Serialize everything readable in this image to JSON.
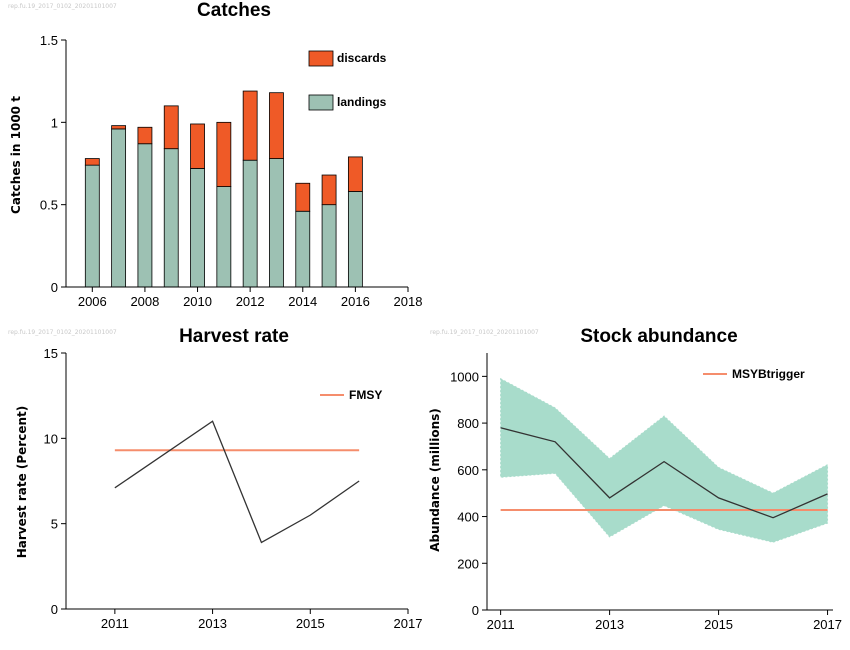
{
  "watermark": "rep.fu.19_2017_0102_20201101007",
  "colors": {
    "landings": "#9dc1b3",
    "discards": "#ef5a27",
    "reference": "#f58d6c",
    "band": "#a8dccb",
    "line": "#333333"
  },
  "chart_data": [
    {
      "type": "bar",
      "title": "Catches",
      "ylabel": "Catches in 1000 t",
      "xlabel": "",
      "xlim": [
        2005,
        2018
      ],
      "ylim": [
        0,
        1.5
      ],
      "xticks": [
        2006,
        2008,
        2010,
        2012,
        2014,
        2016,
        2018
      ],
      "yticks": [
        0,
        0.5,
        1,
        1.5
      ],
      "ytick_labels": [
        "0",
        "0.5",
        "1",
        "1.5"
      ],
      "categories": [
        2006,
        2007,
        2008,
        2009,
        2010,
        2011,
        2012,
        2013,
        2014,
        2015,
        2016
      ],
      "series": [
        {
          "name": "landings",
          "values": [
            0.74,
            0.96,
            0.87,
            0.84,
            0.72,
            0.61,
            0.77,
            0.78,
            0.46,
            0.5,
            0.58
          ]
        },
        {
          "name": "discards",
          "values": [
            0.04,
            0.02,
            0.1,
            0.26,
            0.27,
            0.39,
            0.42,
            0.4,
            0.17,
            0.18,
            0.21
          ]
        }
      ],
      "stacked": true,
      "legend": "top-right"
    },
    {
      "type": "line",
      "title": "Harvest rate",
      "ylabel": "Harvest rate (Percent)",
      "xlabel": "",
      "xlim": [
        2010,
        2017
      ],
      "ylim": [
        0,
        15
      ],
      "xticks": [
        2011,
        2013,
        2015,
        2017
      ],
      "yticks": [
        0,
        5,
        10,
        15
      ],
      "series": [
        {
          "name": "",
          "x": [
            2011,
            2013,
            2014,
            2015,
            2016
          ],
          "values": [
            7.1,
            11.0,
            3.9,
            5.5,
            7.5
          ]
        }
      ],
      "reference_line": {
        "name": "FMSY",
        "y": 9.3,
        "x": [
          2011,
          2016
        ]
      },
      "legend": "top-right"
    },
    {
      "type": "area",
      "title": "Stock abundance",
      "ylabel": "Abundance (millions)",
      "xlabel": "",
      "xlim": [
        2010.75,
        2017.1
      ],
      "ylim": [
        0,
        1100
      ],
      "xticks": [
        2011,
        2013,
        2015,
        2017
      ],
      "yticks": [
        0,
        200,
        400,
        600,
        800,
        1000
      ],
      "x": [
        2011,
        2012,
        2013,
        2014,
        2015,
        2016,
        2017
      ],
      "series": [
        {
          "name": "",
          "values": [
            780,
            720,
            480,
            635,
            480,
            395,
            497
          ]
        }
      ],
      "band_upper": [
        990,
        865,
        648,
        830,
        610,
        500,
        622
      ],
      "band_lower": [
        568,
        585,
        313,
        447,
        345,
        290,
        372
      ],
      "reference_line": {
        "name": "MSYBtrigger",
        "y": 428,
        "x": [
          2011,
          2017
        ]
      },
      "legend": "top-right"
    }
  ]
}
